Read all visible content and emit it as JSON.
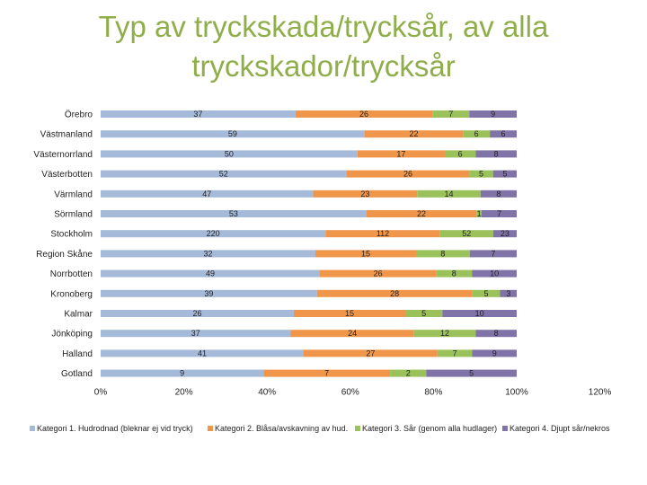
{
  "title_lines": [
    "Typ av tryckskada/trycksår, av alla",
    "tryckskador/trycksår"
  ],
  "colors": {
    "kat1": "#a5b9d8",
    "kat2": "#f0964a",
    "kat3": "#9ac15a",
    "kat4": "#8073a8"
  },
  "chart_data": {
    "type": "bar",
    "orientation": "horizontal",
    "stacked": "percent",
    "title": "Typ av tryckskada/trycksår, av alla tryckskador/trycksår",
    "categories": [
      "Örebro",
      "Västmanland",
      "Västernorrland",
      "Västerbotten",
      "Värmland",
      "Sörmland",
      "Stockholm",
      "Region Skåne",
      "Norrbotten",
      "Kronoberg",
      "Kalmar",
      "Jönköping",
      "Halland",
      "Gotland"
    ],
    "series": [
      {
        "name": "Kategori 1. Hudrodnad (bleknar ej vid tryck)",
        "values": [
          37,
          59,
          50,
          52,
          47,
          53,
          220,
          32,
          49,
          39,
          26,
          37,
          41,
          9
        ]
      },
      {
        "name": "Kategori 2. Blåsa/avskavning av hud.",
        "values": [
          26,
          22,
          17,
          26,
          23,
          22,
          112,
          15,
          26,
          28,
          15,
          24,
          27,
          7
        ]
      },
      {
        "name": "Kategori 3. Sår (genom alla hudlager)",
        "values": [
          7,
          6,
          6,
          5,
          14,
          1,
          52,
          8,
          8,
          5,
          5,
          12,
          7,
          2
        ]
      },
      {
        "name": "Kategori 4. Djupt sår/nekros",
        "values": [
          9,
          6,
          8,
          5,
          8,
          7,
          23,
          7,
          10,
          3,
          10,
          8,
          9,
          5
        ]
      }
    ],
    "xaxis_ticks": [
      "0%",
      "20%",
      "40%",
      "60%",
      "80%",
      "100%",
      "120%"
    ],
    "xlim": [
      0,
      1.2
    ],
    "grid": false,
    "legend_position": "bottom"
  }
}
